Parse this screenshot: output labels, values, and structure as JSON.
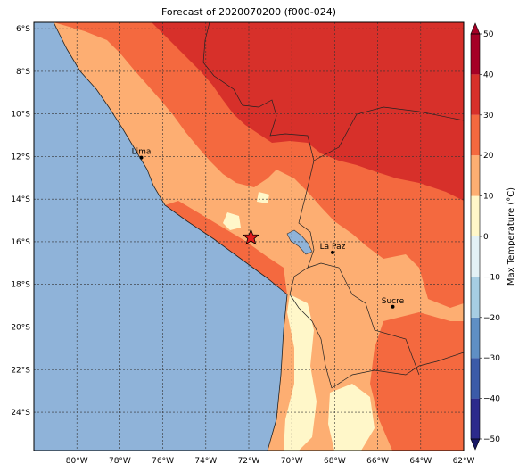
{
  "title": "Forecast of 2020070200 (f000-024)",
  "map": {
    "lon_range": [
      -82,
      -62
    ],
    "lat_range": [
      -25.8,
      -5.7
    ],
    "lon_ticks": [
      {
        "v": -80,
        "label": "80°W"
      },
      {
        "v": -78,
        "label": "78°W"
      },
      {
        "v": -76,
        "label": "76°W"
      },
      {
        "v": -74,
        "label": "74°W"
      },
      {
        "v": -72,
        "label": "72°W"
      },
      {
        "v": -70,
        "label": "70°W"
      },
      {
        "v": -68,
        "label": "68°W"
      },
      {
        "v": -66,
        "label": "66°W"
      },
      {
        "v": -64,
        "label": "64°W"
      },
      {
        "v": -62,
        "label": "62°W"
      }
    ],
    "lat_ticks": [
      {
        "v": -6,
        "label": "6°S"
      },
      {
        "v": -8,
        "label": "8°S"
      },
      {
        "v": -10,
        "label": "10°S"
      },
      {
        "v": -12,
        "label": "12°S"
      },
      {
        "v": -14,
        "label": "14°S"
      },
      {
        "v": -16,
        "label": "16°S"
      },
      {
        "v": -18,
        "label": "18°S"
      },
      {
        "v": -20,
        "label": "20°S"
      },
      {
        "v": -22,
        "label": "22°S"
      },
      {
        "v": -24,
        "label": "24°S"
      }
    ],
    "cities": [
      {
        "name": "Lima",
        "lon": -77.0,
        "lat": -12.05
      },
      {
        "name": "La Paz",
        "lon": -68.1,
        "lat": -16.5
      },
      {
        "name": "Sucre",
        "lon": -65.3,
        "lat": -19.05
      }
    ],
    "marker": {
      "lon": -71.9,
      "lat": -15.8,
      "symbol": "star"
    },
    "ocean_color": "#8fb3d9"
  },
  "colorbar": {
    "label": "Max Temperature (°C)",
    "levels": [
      -50,
      -40,
      -30,
      -20,
      -10,
      0,
      10,
      20,
      30,
      40,
      50
    ],
    "tick_labels": [
      "−50",
      "−40",
      "−30",
      "−20",
      "−10",
      "0",
      "10",
      "20",
      "30",
      "40",
      "50"
    ],
    "colors": [
      "#2c2a8c",
      "#3b5ba8",
      "#5f8fc4",
      "#a6cde3",
      "#e3f1f6",
      "#fff7c9",
      "#fdae72",
      "#f4693f",
      "#d7302a",
      "#a50026"
    ],
    "extend": "both"
  }
}
